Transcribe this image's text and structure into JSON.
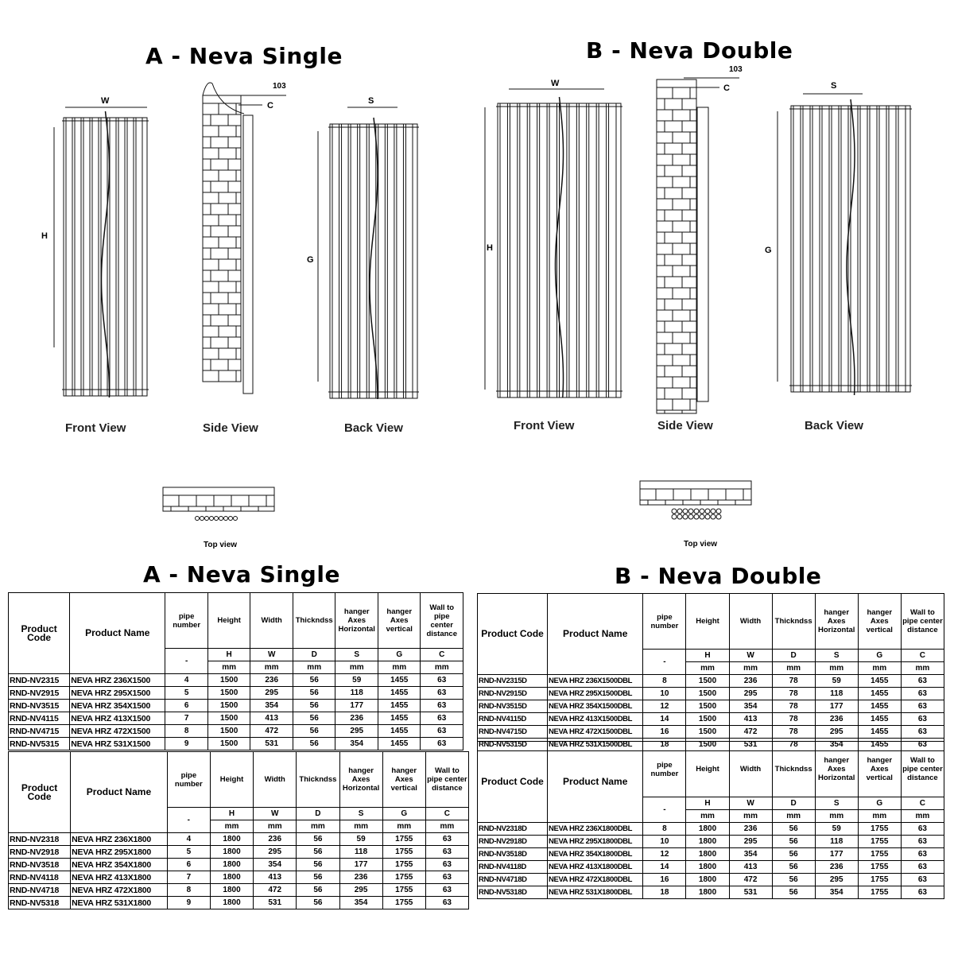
{
  "single": {
    "title": "A - Neva Single",
    "views": [
      "Front View",
      "Side View",
      "Back View"
    ],
    "top_view": "Top view",
    "table_title": "A - Neva Single"
  },
  "double": {
    "title": "B - Neva Double",
    "views": [
      "Front View",
      "Side View",
      "Back View"
    ],
    "top_view": "Top view",
    "table_title": "B - Neva Double"
  },
  "dimensions": {
    "W": "W",
    "H": "H",
    "S": "S",
    "G": "G",
    "C": "C",
    "offset": "103"
  },
  "headers": [
    "Product Code",
    "Product Name",
    "pipe number",
    "Height",
    "Width",
    "Thickndss",
    "hanger Axes Horizontal",
    "hanger Axes vertical",
    "Wall to pipe center distance"
  ],
  "symbols": [
    "-",
    "H",
    "W",
    "D",
    "S",
    "G",
    "C"
  ],
  "units": [
    "mm",
    "mm",
    "mm",
    "mm",
    "mm",
    "mm"
  ],
  "tables": [
    {
      "rows": [
        [
          "RND-NV2315",
          "NEVA HRZ 236X1500",
          "4",
          "1500",
          "236",
          "56",
          "59",
          "1455",
          "63"
        ],
        [
          "RND-NV2915",
          "NEVA HRZ 295X1500",
          "5",
          "1500",
          "295",
          "56",
          "118",
          "1455",
          "63"
        ],
        [
          "RND-NV3515",
          "NEVA HRZ 354X1500",
          "6",
          "1500",
          "354",
          "56",
          "177",
          "1455",
          "63"
        ],
        [
          "RND-NV4115",
          "NEVA HRZ 413X1500",
          "7",
          "1500",
          "413",
          "56",
          "236",
          "1455",
          "63"
        ],
        [
          "RND-NV4715",
          "NEVA HRZ 472X1500",
          "8",
          "1500",
          "472",
          "56",
          "295",
          "1455",
          "63"
        ],
        [
          "RND-NV5315",
          "NEVA HRZ 531X1500",
          "9",
          "1500",
          "531",
          "56",
          "354",
          "1455",
          "63"
        ]
      ]
    },
    {
      "rows": [
        [
          "RND-NV2318",
          "NEVA HRZ 236X1800",
          "4",
          "1800",
          "236",
          "56",
          "59",
          "1755",
          "63"
        ],
        [
          "RND-NV2918",
          "NEVA HRZ 295X1800",
          "5",
          "1800",
          "295",
          "56",
          "118",
          "1755",
          "63"
        ],
        [
          "RND-NV3518",
          "NEVA HRZ 354X1800",
          "6",
          "1800",
          "354",
          "56",
          "177",
          "1755",
          "63"
        ],
        [
          "RND-NV4118",
          "NEVA HRZ 413X1800",
          "7",
          "1800",
          "413",
          "56",
          "236",
          "1755",
          "63"
        ],
        [
          "RND-NV4718",
          "NEVA HRZ 472X1800",
          "8",
          "1800",
          "472",
          "56",
          "295",
          "1755",
          "63"
        ],
        [
          "RND-NV5318",
          "NEVA HRZ 531X1800",
          "9",
          "1800",
          "531",
          "56",
          "354",
          "1755",
          "63"
        ]
      ]
    },
    {
      "rows": [
        [
          "RND-NV2315D",
          "NEVA HRZ 236X1500DBL",
          "8",
          "1500",
          "236",
          "78",
          "59",
          "1455",
          "63"
        ],
        [
          "RND-NV2915D",
          "NEVA HRZ 295X1500DBL",
          "10",
          "1500",
          "295",
          "78",
          "118",
          "1455",
          "63"
        ],
        [
          "RND-NV3515D",
          "NEVA HRZ 354X1500DBL",
          "12",
          "1500",
          "354",
          "78",
          "177",
          "1455",
          "63"
        ],
        [
          "RND-NV4115D",
          "NEVA HRZ 413X1500DBL",
          "14",
          "1500",
          "413",
          "78",
          "236",
          "1455",
          "63"
        ],
        [
          "RND-NV4715D",
          "NEVA HRZ 472X1500DBL",
          "16",
          "1500",
          "472",
          "78",
          "295",
          "1455",
          "63"
        ],
        [
          "RND-NV5315D",
          "NEVA HRZ 531X1500DBL",
          "18",
          "1500",
          "531",
          "78",
          "354",
          "1455",
          "63"
        ]
      ]
    },
    {
      "rows": [
        [
          "RND-NV2318D",
          "NEVA HRZ 236X1800DBL",
          "8",
          "1800",
          "236",
          "56",
          "59",
          "1755",
          "63"
        ],
        [
          "RND-NV2918D",
          "NEVA HRZ 295X1800DBL",
          "10",
          "1800",
          "295",
          "56",
          "118",
          "1755",
          "63"
        ],
        [
          "RND-NV3518D",
          "NEVA HRZ 354X1800DBL",
          "12",
          "1800",
          "354",
          "56",
          "177",
          "1755",
          "63"
        ],
        [
          "RND-NV4118D",
          "NEVA HRZ 413X1800DBL",
          "14",
          "1800",
          "413",
          "56",
          "236",
          "1755",
          "63"
        ],
        [
          "RND-NV4718D",
          "NEVA HRZ 472X1800DBL",
          "16",
          "1800",
          "472",
          "56",
          "295",
          "1755",
          "63"
        ],
        [
          "RND-NV5318D",
          "NEVA HRZ 531X1800DBL",
          "18",
          "1800",
          "531",
          "56",
          "354",
          "1755",
          "63"
        ]
      ]
    }
  ]
}
